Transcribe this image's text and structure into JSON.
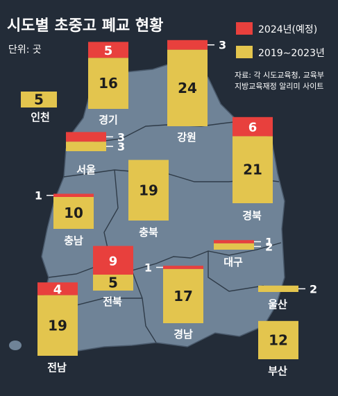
{
  "header": {
    "title": "시도별 초중고 폐교 현황",
    "unit": "단위: 곳",
    "source_line1": "자료: 각 시도교육청, 교육부",
    "source_line2": "지방교육재정 알리미 사이트"
  },
  "colors": {
    "background": "#232c38",
    "map": "#6f8397",
    "map_border": "#4a5a6c",
    "planned": "#e8403d",
    "past": "#e3c54e",
    "text_light": "#ffffff",
    "text_dark": "#1d1d1d"
  },
  "chart_data": {
    "type": "bar",
    "title": "시도별 초중고 폐교 현황",
    "unit": "단위: 곳",
    "series": [
      {
        "name": "2024년(예정)",
        "color": "#e8403d"
      },
      {
        "name": "2019∼2023년",
        "color": "#e3c54e"
      }
    ],
    "regions": [
      {
        "name": "인천",
        "planned": 0,
        "past": 5
      },
      {
        "name": "경기",
        "planned": 5,
        "past": 16
      },
      {
        "name": "강원",
        "planned": 3,
        "past": 24
      },
      {
        "name": "서울",
        "planned": 3,
        "past": 3
      },
      {
        "name": "경북",
        "planned": 6,
        "past": 21
      },
      {
        "name": "충북",
        "planned": 0,
        "past": 19
      },
      {
        "name": "충남",
        "planned": 1,
        "past": 10
      },
      {
        "name": "대구",
        "planned": 1,
        "past": 2
      },
      {
        "name": "전북",
        "planned": 9,
        "past": 5
      },
      {
        "name": "경남",
        "planned": 1,
        "past": 17
      },
      {
        "name": "울산",
        "planned": 0,
        "past": 2
      },
      {
        "name": "전남",
        "planned": 4,
        "past": 19
      },
      {
        "name": "부산",
        "planned": 0,
        "past": 12
      }
    ]
  }
}
